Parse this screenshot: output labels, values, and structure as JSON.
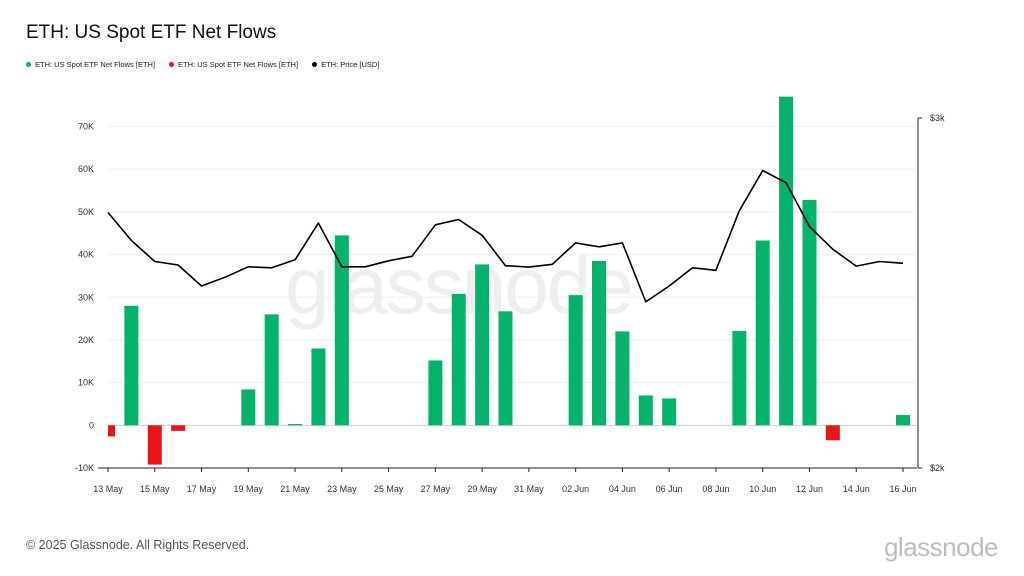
{
  "title": "ETH: US Spot ETF Net Flows",
  "legend": [
    {
      "label": "ETH: US Spot ETF Net Flows [ETH]",
      "color": "#04b26b"
    },
    {
      "label": "ETH: US Spot ETF Net Flows [ETH]",
      "color": "#e8151b"
    },
    {
      "label": "ETH: Price [USD]",
      "color": "#000000"
    }
  ],
  "watermark": "glassnode",
  "footer": "© 2025 Glassnode. All Rights Reserved.",
  "brand": "glassnode",
  "chart_data": {
    "type": "bar",
    "x_ticks": [
      "13 May",
      "15 May",
      "17 May",
      "19 May",
      "21 May",
      "23 May",
      "25 May",
      "27 May",
      "29 May",
      "31 May",
      "02 Jun",
      "04 Jun",
      "06 Jun",
      "08 Jun",
      "10 Jun",
      "12 Jun",
      "14 Jun",
      "16 Jun"
    ],
    "y_left_ticks": [
      "-10K",
      "0",
      "10K",
      "20K",
      "30K",
      "40K",
      "50K",
      "60K",
      "70K"
    ],
    "y_left_lim": [
      -10000,
      72000
    ],
    "y_right_ticks": [
      "$2k",
      "$3k"
    ],
    "y_right_lim": [
      2000,
      3000
    ],
    "grid": true,
    "colors": {
      "positive": "#04b26b",
      "negative": "#e8151b",
      "price": "#000000"
    },
    "days": [
      "13 May",
      "14 May",
      "15 May",
      "16 May",
      "17 May",
      "18 May",
      "19 May",
      "20 May",
      "21 May",
      "22 May",
      "23 May",
      "24 May",
      "25 May",
      "26 May",
      "27 May",
      "28 May",
      "29 May",
      "30 May",
      "31 May",
      "01 Jun",
      "02 Jun",
      "03 Jun",
      "04 Jun",
      "05 Jun",
      "06 Jun",
      "07 Jun",
      "08 Jun",
      "09 Jun",
      "10 Jun",
      "11 Jun",
      "12 Jun",
      "13 Jun",
      "14 Jun",
      "15 Jun",
      "16 Jun"
    ],
    "series": [
      {
        "name": "ETH: US Spot ETF Net Flows [ETH]",
        "values": [
          -2600,
          28000,
          -9200,
          -1300,
          0,
          0,
          8400,
          26000,
          300,
          18000,
          44500,
          0,
          0,
          0,
          15200,
          30800,
          37700,
          26700,
          0,
          0,
          30500,
          38500,
          22000,
          7000,
          6300,
          0,
          0,
          22100,
          43300,
          77000,
          52800,
          -3500,
          0,
          0,
          2400
        ]
      },
      {
        "name": "ETH: Price [USD]",
        "values": [
          2730,
          2650,
          2590,
          2580,
          2520,
          2545,
          2575,
          2572,
          2595,
          2700,
          2575,
          2575,
          2592,
          2605,
          2695,
          2710,
          2665,
          2578,
          2574,
          2582,
          2643,
          2632,
          2643,
          2475,
          2520,
          2572,
          2565,
          2735,
          2850,
          2815,
          2690,
          2625,
          2577,
          2590,
          2585
        ]
      }
    ]
  }
}
